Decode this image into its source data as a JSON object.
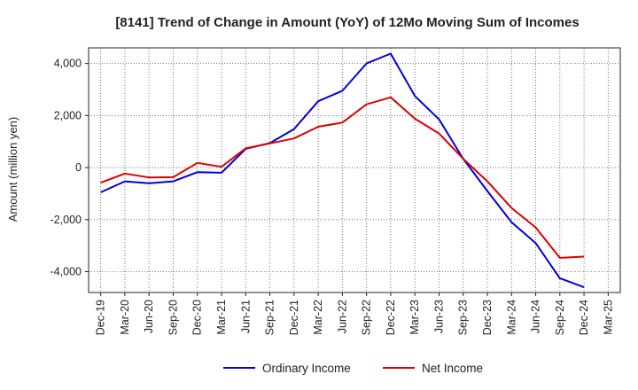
{
  "chart_data": {
    "type": "line",
    "title": "[8141]  Trend of Change in Amount (YoY) of 12Mo Moving Sum of Incomes",
    "xlabel": "",
    "ylabel": "Amount (million yen)",
    "ylim": [
      -4800,
      4600
    ],
    "yticks": [
      4000,
      2000,
      0,
      -2000,
      -4000
    ],
    "ytick_labels": [
      "4,000",
      "2,000",
      "0",
      "-2,000",
      "-4,000"
    ],
    "grid": true,
    "legend_position": "bottom",
    "x": [
      "Dec-19",
      "Mar-20",
      "Jun-20",
      "Sep-20",
      "Dec-20",
      "Mar-21",
      "Jun-21",
      "Sep-21",
      "Dec-21",
      "Mar-22",
      "Jun-22",
      "Sep-22",
      "Dec-22",
      "Mar-23",
      "Jun-23",
      "Sep-23",
      "Dec-23",
      "Mar-24",
      "Jun-24",
      "Sep-24",
      "Dec-24",
      "Mar-25"
    ],
    "series": [
      {
        "name": "Ordinary Income",
        "color": "#0000dd",
        "values": [
          -950,
          -530,
          -600,
          -530,
          -180,
          -200,
          720,
          940,
          1480,
          2550,
          2950,
          4000,
          4380,
          2750,
          1850,
          340,
          -900,
          -2100,
          -2900,
          -4250,
          -4600,
          null
        ]
      },
      {
        "name": "Net Income",
        "color": "#dd0000",
        "values": [
          -580,
          -230,
          -380,
          -370,
          180,
          30,
          740,
          930,
          1120,
          1570,
          1730,
          2430,
          2700,
          1880,
          1310,
          340,
          -530,
          -1550,
          -2300,
          -3470,
          -3420,
          null
        ]
      }
    ]
  }
}
